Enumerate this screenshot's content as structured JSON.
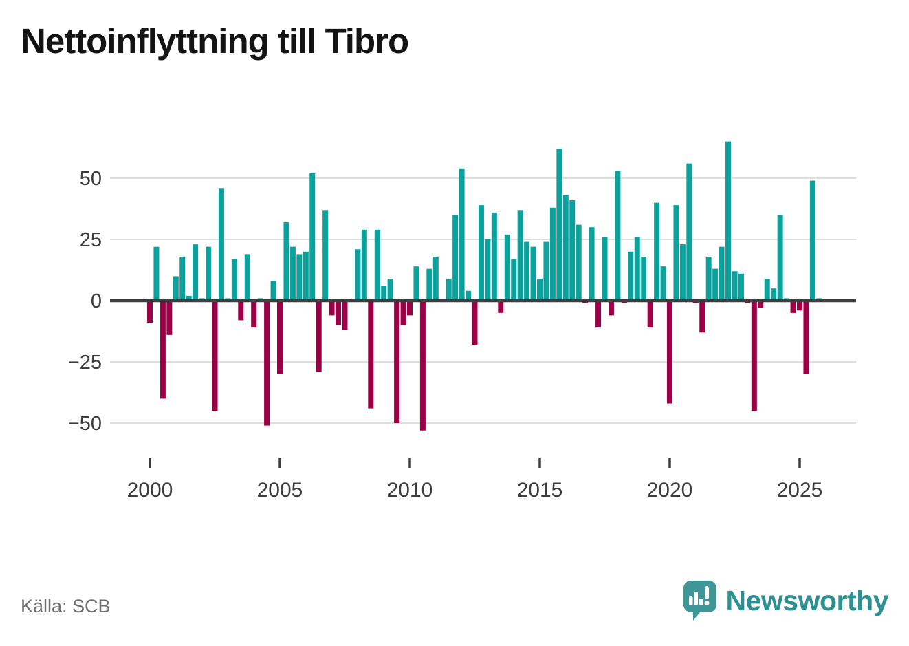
{
  "header": {
    "title": "Nettoinflyttning till Tibro"
  },
  "footer": {
    "source": "Källa: SCB",
    "brand": "Newsworthy"
  },
  "chart_data": {
    "type": "bar",
    "title": "Nettoinflyttning till Tibro",
    "period": "quarterly",
    "start_year": 2000,
    "values": [
      -9,
      22,
      -40,
      -14,
      10,
      18,
      2,
      23,
      1,
      22,
      -45,
      46,
      1,
      17,
      -8,
      19,
      -11,
      1,
      -51,
      8,
      -30,
      32,
      22,
      19,
      20,
      52,
      -29,
      37,
      -6,
      -10,
      -12,
      0,
      21,
      29,
      -44,
      29,
      6,
      9,
      -50,
      -10,
      -6,
      14,
      -53,
      13,
      18,
      0,
      9,
      35,
      54,
      4,
      -18,
      39,
      25,
      36,
      -5,
      27,
      17,
      37,
      24,
      22,
      9,
      24,
      38,
      62,
      43,
      41,
      31,
      -1,
      30,
      -11,
      26,
      -6,
      53,
      -1,
      20,
      26,
      18,
      -11,
      40,
      14,
      -42,
      39,
      23,
      56,
      -1,
      -13,
      18,
      13,
      22,
      65,
      12,
      11,
      -1,
      -45,
      -3,
      9,
      5,
      35,
      1,
      -5,
      -4,
      -30,
      49,
      1
    ],
    "yticks": [
      50,
      25,
      0,
      -25,
      -50
    ],
    "ytick_labels": [
      "50",
      "25",
      "0",
      "−25",
      "−50"
    ],
    "xticks": [
      2000,
      2005,
      2010,
      2015,
      2020,
      2025
    ],
    "ylim": [
      -60,
      70
    ],
    "grid": true,
    "legend": "none",
    "positive_color": "#0ba29e",
    "negative_color": "#9b0046",
    "zero_line_color": "#3d3d3d",
    "grid_color": "#dedede",
    "axis_text_color": "#3d3d3d"
  }
}
